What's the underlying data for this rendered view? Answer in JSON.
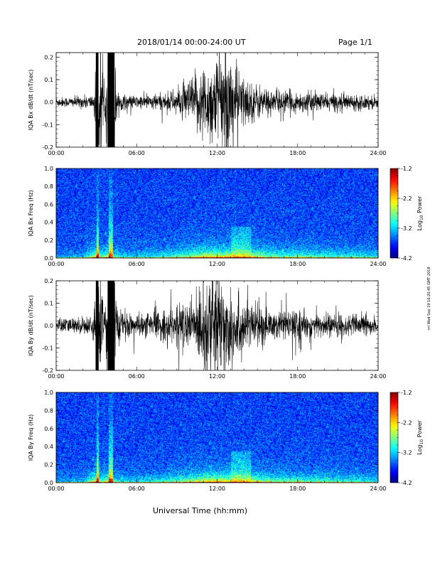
{
  "header": {
    "title": "2018/01/14   00:00-24:00 UT",
    "page": "Page 1/1",
    "stamp": "nrl Wed Sep 19 16:20:45 GMT 2018"
  },
  "chart_data": [
    {
      "type": "line",
      "ylabel": "IQA Bx dB/dt (nT/sec)",
      "xlim": [
        0,
        24
      ],
      "ylim": [
        -0.2,
        0.22
      ],
      "yticks": [
        -0.2,
        -0.1,
        0.0,
        0.1,
        0.2
      ],
      "yticklabels": [
        "-0.2",
        "-0.1",
        "0.0",
        "0.1",
        "0.2"
      ],
      "xticks": [
        0,
        6,
        12,
        18,
        24
      ],
      "xticklabels": [
        "00:00",
        "06:00",
        "12:00",
        "18:00",
        "24:00"
      ],
      "envelope": {
        "x": [
          0,
          1,
          2,
          2.8,
          3.0,
          3.3,
          3.6,
          3.8,
          4.0,
          4.3,
          4.6,
          5,
          6,
          7,
          8,
          8.5,
          9,
          9.5,
          10,
          10.5,
          11,
          11.5,
          12,
          12.5,
          13,
          13.5,
          14,
          14.5,
          15,
          15.5,
          16,
          17,
          18,
          19,
          20,
          21,
          22,
          23,
          24
        ],
        "y": [
          0.02,
          0.02,
          0.025,
          0.03,
          0.2,
          0.2,
          0.04,
          0.2,
          0.2,
          0.2,
          0.04,
          0.03,
          0.025,
          0.03,
          0.035,
          0.04,
          0.05,
          0.07,
          0.09,
          0.12,
          0.15,
          0.16,
          0.18,
          0.2,
          0.2,
          0.14,
          0.1,
          0.08,
          0.07,
          0.06,
          0.05,
          0.045,
          0.04,
          0.04,
          0.035,
          0.035,
          0.03,
          0.03,
          0.025
        ]
      }
    },
    {
      "type": "heatmap",
      "ylabel": "IQA Bx Freq (Hz)",
      "xlim": [
        0,
        24
      ],
      "ylim": [
        0,
        1.0
      ],
      "yticks": [
        0.0,
        0.2,
        0.4,
        0.6,
        0.8,
        1.0
      ],
      "yticklabels": [
        "0.0",
        "0.2",
        "0.4",
        "0.6",
        "0.8",
        "1.0"
      ],
      "xticks": [
        0,
        6,
        12,
        18,
        24
      ],
      "xticklabels": [
        "00:00",
        "06:00",
        "12:00",
        "18:00",
        "24:00"
      ],
      "colorbar": {
        "label": "Log10 Power",
        "min": -4.2,
        "max": -1.2,
        "ticks": [
          -1.2,
          -2.2,
          -3.2,
          -4.2
        ],
        "ticklabels": [
          "-1.2",
          "-2.2",
          "-3.2",
          "-4.2"
        ]
      }
    },
    {
      "type": "line",
      "ylabel": "IQA By dB/dt (nT/sec)",
      "xlim": [
        0,
        24
      ],
      "ylim": [
        -0.2,
        0.2
      ],
      "yticks": [
        -0.2,
        -0.1,
        0.0,
        0.1,
        0.2
      ],
      "yticklabels": [
        "-0.2",
        "-0.1",
        "0.0",
        "0.1",
        "0.2"
      ],
      "xticks": [
        0,
        6,
        12,
        18,
        24
      ],
      "xticklabels": [
        "00:00",
        "06:00",
        "12:00",
        "18:00",
        "24:00"
      ],
      "envelope": {
        "x": [
          0,
          1,
          2,
          2.8,
          3.0,
          3.3,
          3.6,
          3.8,
          4.0,
          4.3,
          4.6,
          5,
          6,
          7,
          8,
          8.5,
          9,
          9.5,
          10,
          10.5,
          11,
          11.5,
          12,
          12.5,
          13,
          13.5,
          14,
          14.5,
          15,
          15.5,
          16,
          17,
          18,
          19,
          20,
          21,
          22,
          23,
          24
        ],
        "y": [
          0.03,
          0.03,
          0.035,
          0.04,
          0.2,
          0.2,
          0.05,
          0.2,
          0.2,
          0.2,
          0.06,
          0.05,
          0.04,
          0.05,
          0.06,
          0.07,
          0.08,
          0.09,
          0.1,
          0.13,
          0.18,
          0.2,
          0.2,
          0.2,
          0.18,
          0.13,
          0.1,
          0.09,
          0.08,
          0.07,
          0.06,
          0.06,
          0.055,
          0.05,
          0.05,
          0.045,
          0.04,
          0.04,
          0.035
        ]
      }
    },
    {
      "type": "heatmap",
      "ylabel": "IQA By Freq (Hz)",
      "xlim": [
        0,
        24
      ],
      "ylim": [
        0,
        1.0
      ],
      "yticks": [
        0.0,
        0.2,
        0.4,
        0.6,
        0.8,
        1.0
      ],
      "yticklabels": [
        "0.0",
        "0.2",
        "0.4",
        "0.6",
        "0.8",
        "1.0"
      ],
      "xticks": [
        0,
        6,
        12,
        18,
        24
      ],
      "xticklabels": [
        "00:00",
        "06:00",
        "12:00",
        "18:00",
        "24:00"
      ],
      "xlabel": "Universal Time (hh:mm)",
      "colorbar": {
        "label": "Log10 Power",
        "min": -4.2,
        "max": -1.2,
        "ticks": [
          -1.2,
          -2.2,
          -3.2,
          -4.2
        ],
        "ticklabels": [
          "-1.2",
          "-2.2",
          "-3.2",
          "-4.2"
        ]
      }
    }
  ]
}
